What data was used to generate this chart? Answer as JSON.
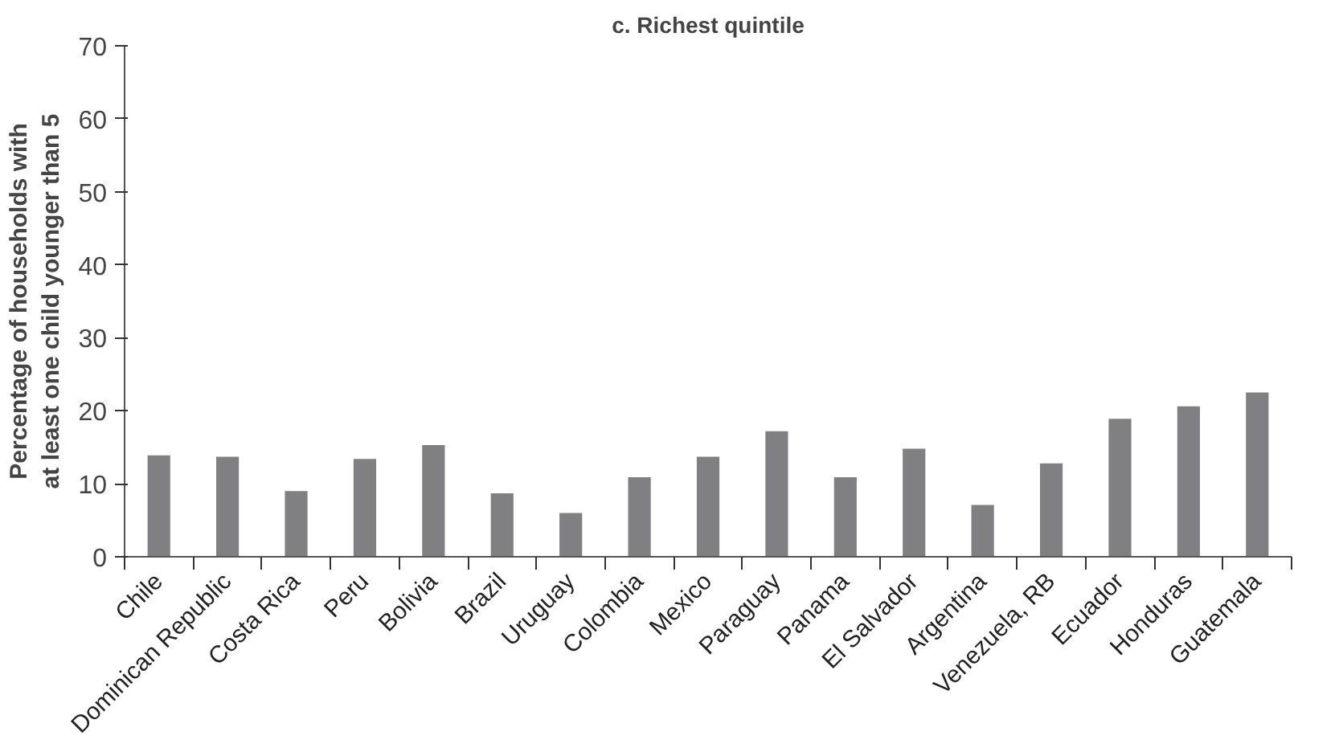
{
  "chart_data": {
    "type": "bar",
    "title": "c. Richest quintile",
    "ylabel": "Percentage of households with at least one child younger than 5",
    "categories": [
      "Chile",
      "Dominican Republic",
      "Costa Rica",
      "Peru",
      "Bolivia",
      "Brazil",
      "Uruguay",
      "Colombia",
      "Mexico",
      "Paraguay",
      "Panama",
      "El Salvador",
      "Argentina",
      "Venezuela, RB",
      "Ecuador",
      "Honduras",
      "Guatemala"
    ],
    "values": [
      13.9,
      13.7,
      9.0,
      13.4,
      15.3,
      8.7,
      6.0,
      10.9,
      13.7,
      17.2,
      10.9,
      14.8,
      7.1,
      12.8,
      18.9,
      20.6,
      22.5
    ],
    "color": "#808083",
    "ylim": [
      0,
      70
    ],
    "yticks": [
      0,
      10,
      20,
      30,
      40,
      50,
      60,
      70
    ],
    "grid": false
  }
}
